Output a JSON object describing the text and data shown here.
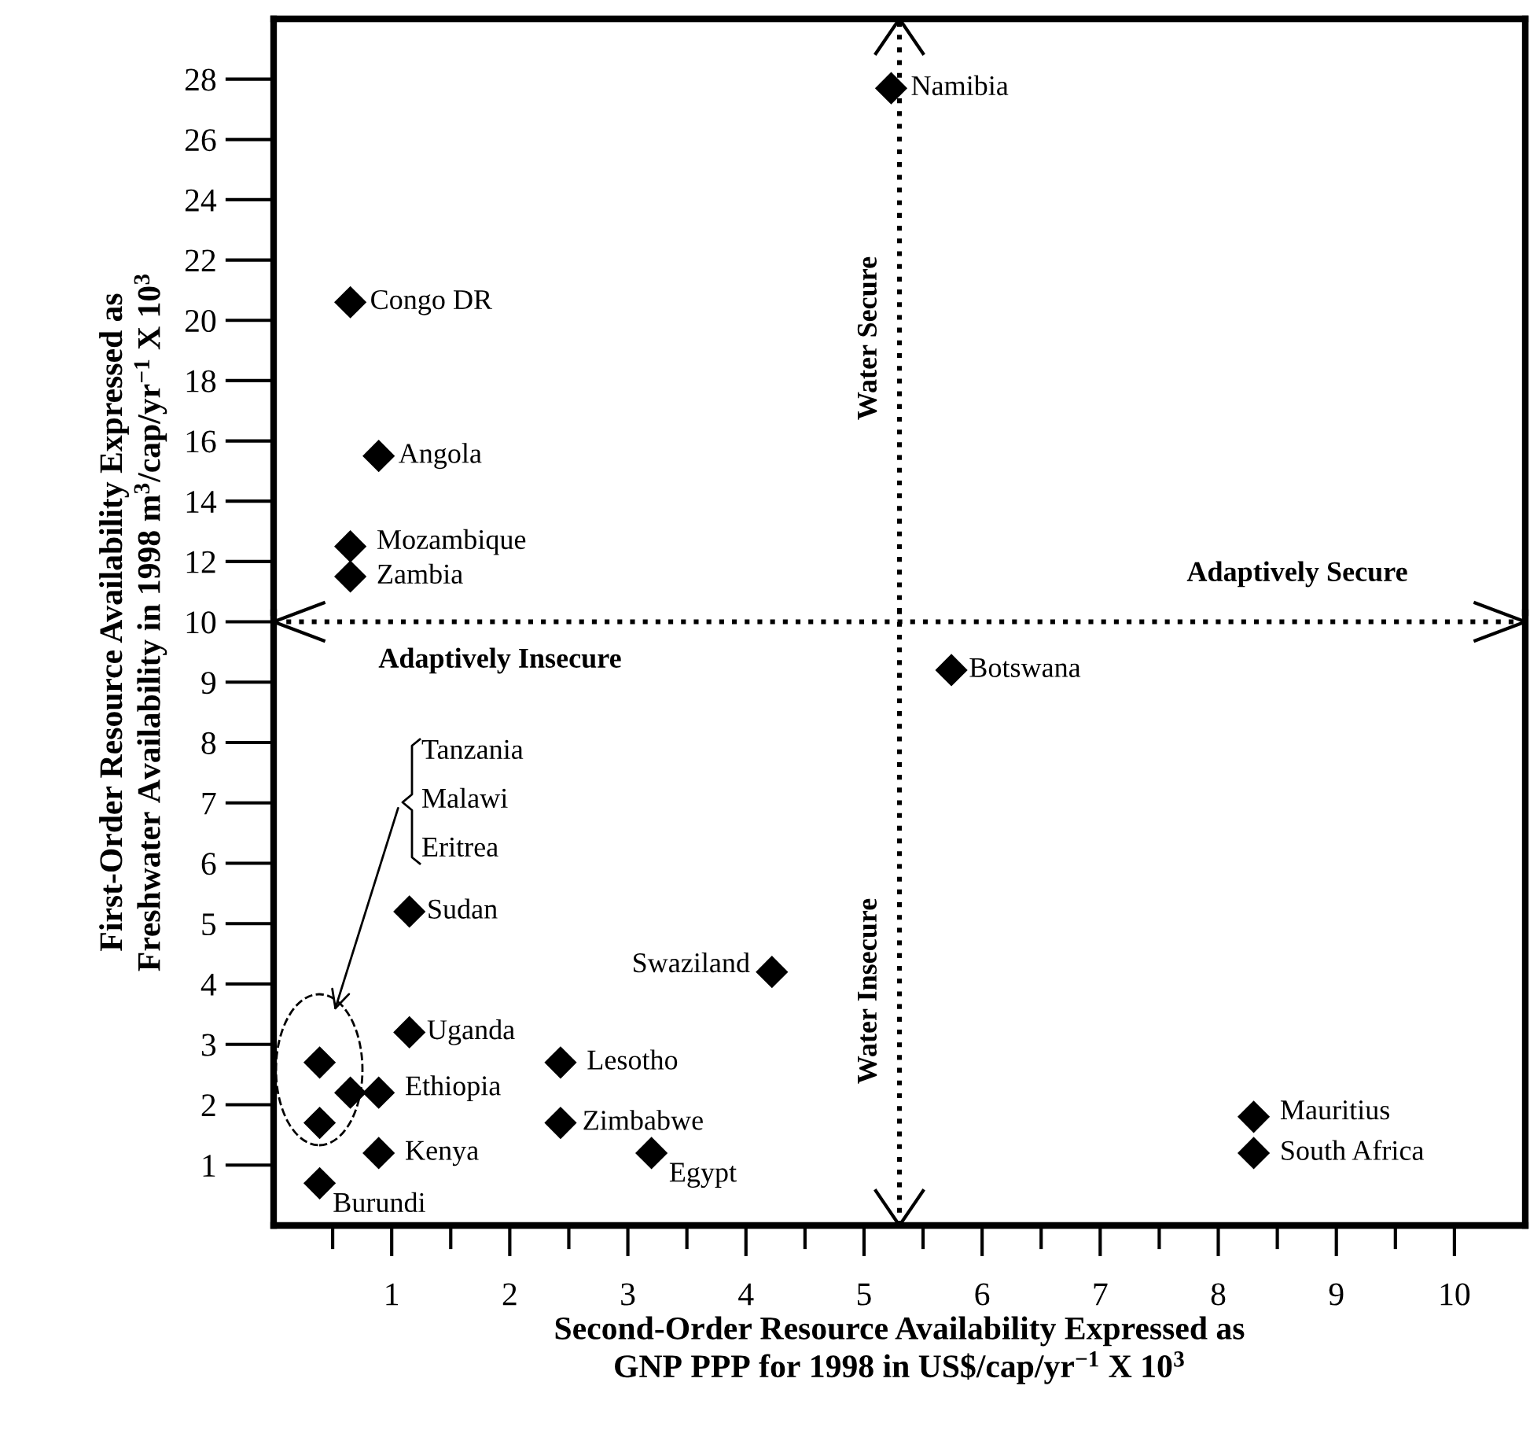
{
  "chart_data": [
    {
      "type": "scatter",
      "ylabel": "First-Order Resource Availability Expressed as\nFreshwater Availability in 1998 m$^{3}$/cap/yr$^{−1}$ X 10$^{3}$",
      "series": [
        {
          "color": "#000000",
          "x": [
            5.23,
            0.65,
            0.89,
            0.65,
            0.65
          ],
          "values": [
            27.7,
            20.6,
            15.5,
            12.5,
            11.5
          ]
        }
      ],
      "marker": "diamond",
      "xlim": [
        0,
        10.6
      ],
      "ylim": [
        10.3,
        30
      ],
      "yticks": [
        12,
        14,
        16,
        18,
        20,
        22,
        24,
        26,
        28
      ],
      "tick_labels": "y",
      "ref_lines": [
        {
          "axis": "x",
          "value": 5.3,
          "line_style": "dotted",
          "color": "#000000"
        }
      ],
      "grid": false,
      "annotations": [
        "Water Secure",
        "Adaptively Secure",
        {
          "text": "Namibia",
          "x": 5.23,
          "y": 27.7
        },
        {
          "text": "Congo DR",
          "x": 0.65,
          "y": 20.6
        },
        {
          "text": "Angola",
          "x": 0.89,
          "y": 15.5
        },
        {
          "text": "Mozambique",
          "x": 0.65,
          "y": 12.5
        },
        {
          "text": "Zambia",
          "x": 0.65,
          "y": 11.5
        }
      ]
    },
    {
      "type": "scatter",
      "xlabel": "Second-Order Resource Availability Expressed as\nGNP PPP for 1998 in US$/cap/yr$^{−1}$ X 10$^{3}$",
      "series": [
        {
          "color": "#000000",
          "x": [
            5.74,
            1.15,
            4.22,
            1.15,
            2.43,
            0.89,
            0.39,
            0.65,
            0.39,
            0.89,
            2.43,
            3.2,
            0.39,
            8.3,
            8.3
          ],
          "values": [
            9.2,
            5.2,
            4.2,
            3.2,
            2.7,
            2.2,
            2.7,
            2.2,
            1.7,
            1.2,
            1.7,
            1.2,
            0.7,
            1.8,
            1.2
          ]
        }
      ],
      "marker": "diamond",
      "xlim": [
        0,
        10.6
      ],
      "xticks": [
        {
          "value": 0.5,
          "label": null
        },
        1,
        {
          "value": 1.5,
          "label": null
        },
        2,
        {
          "value": 2.5,
          "label": null
        },
        3,
        {
          "value": 3.5,
          "label": null
        },
        4,
        {
          "value": 4.5,
          "label": null
        },
        5,
        {
          "value": 5.5,
          "label": null
        },
        6,
        {
          "value": 6.5,
          "label": null
        },
        7,
        {
          "value": 7.5,
          "label": null
        },
        8,
        {
          "value": 8.5,
          "label": null
        },
        9,
        {
          "value": 9.5,
          "label": null
        },
        10
      ],
      "ylim": [
        0,
        10.15
      ],
      "yticks": [
        1,
        2,
        3,
        4,
        5,
        6,
        7,
        8,
        9,
        10
      ],
      "ref_lines": [
        {
          "axis": "x",
          "value": 5.3,
          "line_style": "dotted",
          "color": "#000000"
        },
        {
          "axis": "y",
          "value": 10,
          "line_style": "dotted",
          "color": "#000000"
        }
      ],
      "grid": false,
      "annotations": [
        "Water Insecure",
        "Adaptively Insecure",
        "Tanzania",
        "Malawi",
        "Eritrea",
        {
          "text": "Botswana",
          "x": 5.74,
          "y": 9.2
        },
        {
          "text": "Sudan",
          "x": 1.15,
          "y": 5.2
        },
        {
          "text": "Swaziland",
          "x": 4.22,
          "y": 4.2
        },
        {
          "text": "Uganda",
          "x": 1.15,
          "y": 3.2
        },
        {
          "text": "Lesotho",
          "x": 2.43,
          "y": 2.7
        },
        {
          "text": "Ethiopia",
          "x": 0.89,
          "y": 2.2
        },
        {
          "text": "Kenya",
          "x": 0.89,
          "y": 1.2
        },
        {
          "text": "Zimbabwe",
          "x": 2.43,
          "y": 1.7
        },
        {
          "text": "Egypt",
          "x": 3.2,
          "y": 1.2
        },
        {
          "text": "Burundi",
          "x": 0.39,
          "y": 0.7
        },
        {
          "text": "Mauritius",
          "x": 8.3,
          "y": 1.8
        },
        {
          "text": "South Africa",
          "x": 8.3,
          "y": 1.2
        }
      ]
    }
  ]
}
